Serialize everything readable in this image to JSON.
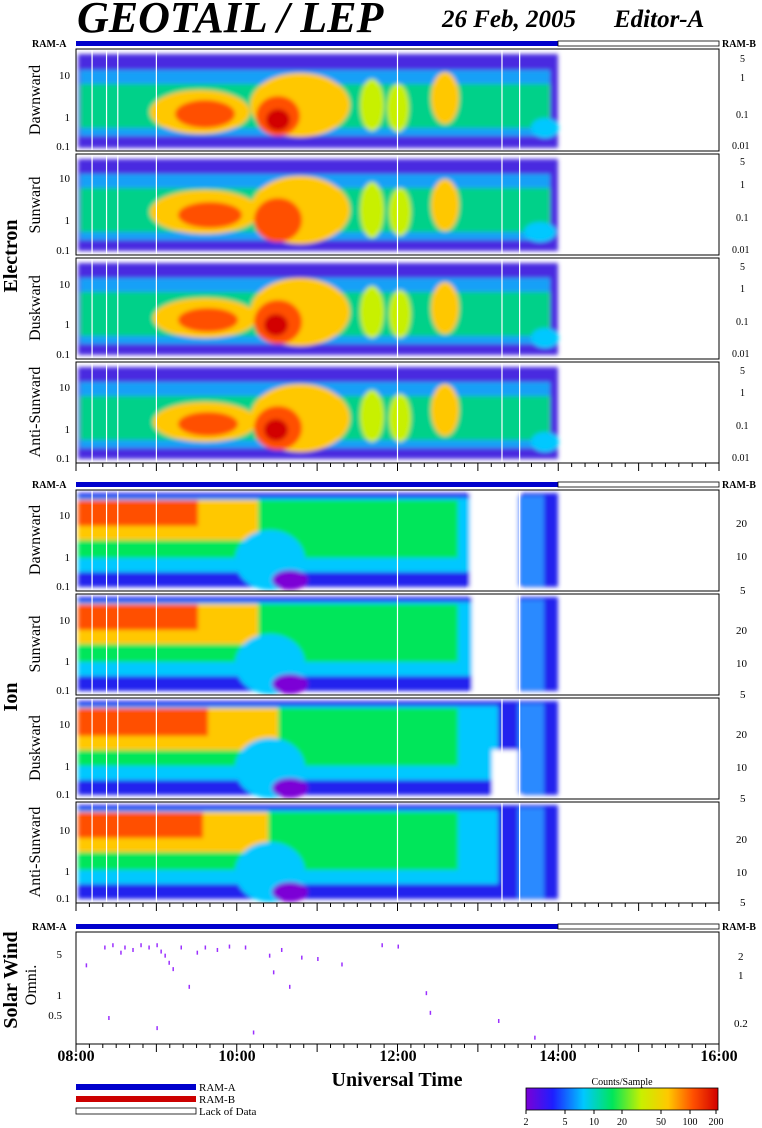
{
  "header": {
    "title": "GEOTAIL / LEP",
    "date": "26 Feb, 2005",
    "editor": "Editor-A"
  },
  "ram_labels": {
    "left": "RAM-A",
    "right": "RAM-B"
  },
  "section_labels": {
    "electron": "Electron",
    "ion": "Ion",
    "solar_wind": "Solar Wind"
  },
  "panel_labels": [
    "Dawnward",
    "Sunward",
    "Duskward",
    "Anti-Sunward",
    "Dawnward",
    "Sunward",
    "Duskward",
    "Anti-Sunward",
    "Omni."
  ],
  "left_ticks": {
    "standard": [
      "10",
      "1",
      "0.1"
    ],
    "solar_wind": [
      "5",
      "1",
      "0.5"
    ]
  },
  "right_ticks": {
    "electron": [
      "5",
      "1",
      "0.1",
      "0.01"
    ],
    "ion": [
      "20",
      "10",
      "5"
    ],
    "solar_wind": [
      "2",
      "1",
      "0.2"
    ]
  },
  "time_axis": {
    "labels": [
      "08:00",
      "10:00",
      "12:00",
      "14:00",
      "16:00"
    ],
    "title": "Universal Time",
    "start_hour": 8,
    "end_hour": 16
  },
  "legend": {
    "ram_a": "RAM-A",
    "ram_b": "RAM-B",
    "lack": "Lack of Data",
    "colors": {
      "ram_a": "#0000cc",
      "ram_b": "#cc0000",
      "lack": "#ffffff"
    }
  },
  "colorbar": {
    "title": "Counts/Sample",
    "ticks": [
      "2",
      "5",
      "10",
      "20",
      "50",
      "100",
      "200"
    ],
    "colors": [
      "#7b00d6",
      "#1e1eff",
      "#00c8ff",
      "#00e65a",
      "#c8f000",
      "#ffc800",
      "#ff5000",
      "#d20000"
    ]
  },
  "chart_data": {
    "type": "heatmap",
    "x_unit": "UT hour",
    "xlim": [
      8,
      16
    ],
    "data_end_hour": 14,
    "ram_a_bar": [
      [
        8,
        14
      ]
    ],
    "lack_of_data_bar": [
      [
        14,
        16
      ]
    ],
    "data_gaps_hours": [
      8.2,
      8.38,
      8.52,
      9.0,
      12.0,
      13.3,
      13.52
    ],
    "electron_activity_hours": [
      [
        9.5,
        10.05
      ],
      [
        10.2,
        11.4
      ],
      [
        11.6,
        11.8
      ],
      [
        11.95,
        12.2
      ],
      [
        12.35,
        12.55
      ],
      [
        12.7,
        12.95
      ],
      [
        13.5,
        13.8
      ]
    ],
    "ion_high_flux_hours": [
      [
        8.0,
        10.0
      ]
    ],
    "ion_depletion_hours": [
      [
        10.3,
        10.7
      ],
      [
        13.3,
        13.5
      ]
    ],
    "solar_wind_points": [
      [
        8.35,
        6
      ],
      [
        8.45,
        6.5
      ],
      [
        8.55,
        5
      ],
      [
        8.6,
        6
      ],
      [
        8.7,
        5.5
      ],
      [
        8.8,
        6.5
      ],
      [
        8.9,
        6
      ],
      [
        9.0,
        6.5
      ],
      [
        9.05,
        5.2
      ],
      [
        9.1,
        4.5
      ],
      [
        9.15,
        3.5
      ],
      [
        9.2,
        2.8
      ],
      [
        9.3,
        6
      ],
      [
        9.5,
        5
      ],
      [
        9.6,
        6
      ],
      [
        9.75,
        5.5
      ],
      [
        9.9,
        6.2
      ],
      [
        10.1,
        6
      ],
      [
        10.4,
        4.5
      ],
      [
        10.45,
        2.5
      ],
      [
        10.55,
        5.5
      ],
      [
        10.65,
        1.5
      ],
      [
        10.8,
        4.2
      ],
      [
        11.0,
        4
      ],
      [
        11.3,
        3.3
      ],
      [
        11.8,
        6.5
      ],
      [
        12.0,
        6.2
      ],
      [
        12.35,
        1.2
      ],
      [
        12.4,
        0.6
      ],
      [
        13.25,
        0.45
      ],
      [
        13.7,
        0.25
      ],
      [
        8.12,
        3.2
      ],
      [
        8.4,
        0.5
      ],
      [
        9.0,
        0.35
      ],
      [
        10.2,
        0.3
      ],
      [
        9.4,
        1.5
      ]
    ]
  }
}
